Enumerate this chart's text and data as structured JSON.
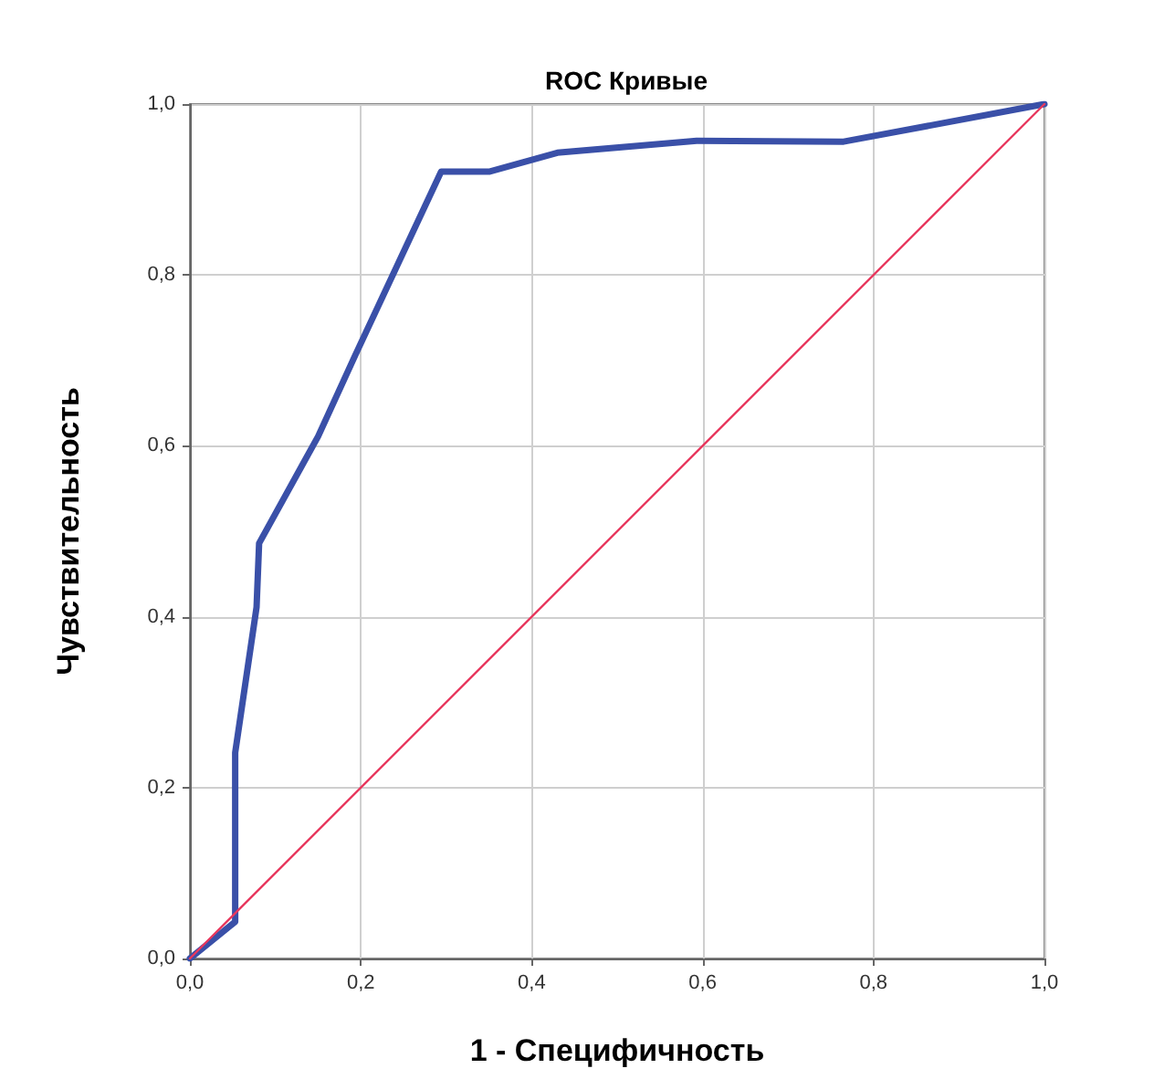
{
  "chart_data": {
    "type": "line",
    "title": "ROC Кривые",
    "xlabel": "1 - Специфичность",
    "ylabel": "Чувствительность",
    "xlim": [
      0,
      1
    ],
    "ylim": [
      0,
      1
    ],
    "xticks": [
      {
        "value": 0,
        "label": "0,0"
      },
      {
        "value": 0.2,
        "label": "0,2"
      },
      {
        "value": 0.4,
        "label": "0,4"
      },
      {
        "value": 0.6,
        "label": "0,6"
      },
      {
        "value": 0.8,
        "label": "0,8"
      },
      {
        "value": 1,
        "label": "1,0"
      }
    ],
    "yticks": [
      {
        "value": 0,
        "label": "0,0"
      },
      {
        "value": 0.2,
        "label": "0,2"
      },
      {
        "value": 0.4,
        "label": "0,4"
      },
      {
        "value": 0.6,
        "label": "0,6"
      },
      {
        "value": 0.8,
        "label": "0,8"
      },
      {
        "value": 1,
        "label": "1,0"
      }
    ],
    "grid": true,
    "marker": "none",
    "line_style": "solid",
    "series": [
      {
        "color": "#3a50a8",
        "x": [
          0,
          0.053,
          0.053,
          0.078,
          0.081,
          0.15,
          0.193,
          0.294,
          0.351,
          0.43,
          0.593,
          0.765,
          1
        ],
        "values": [
          0,
          0.043,
          0.241,
          0.411,
          0.486,
          0.611,
          0.705,
          0.921,
          0.921,
          0.943,
          0.957,
          0.956,
          1
        ]
      },
      {
        "color": "#e8385e",
        "x": [
          0,
          1
        ],
        "values": [
          0,
          1
        ]
      }
    ]
  }
}
